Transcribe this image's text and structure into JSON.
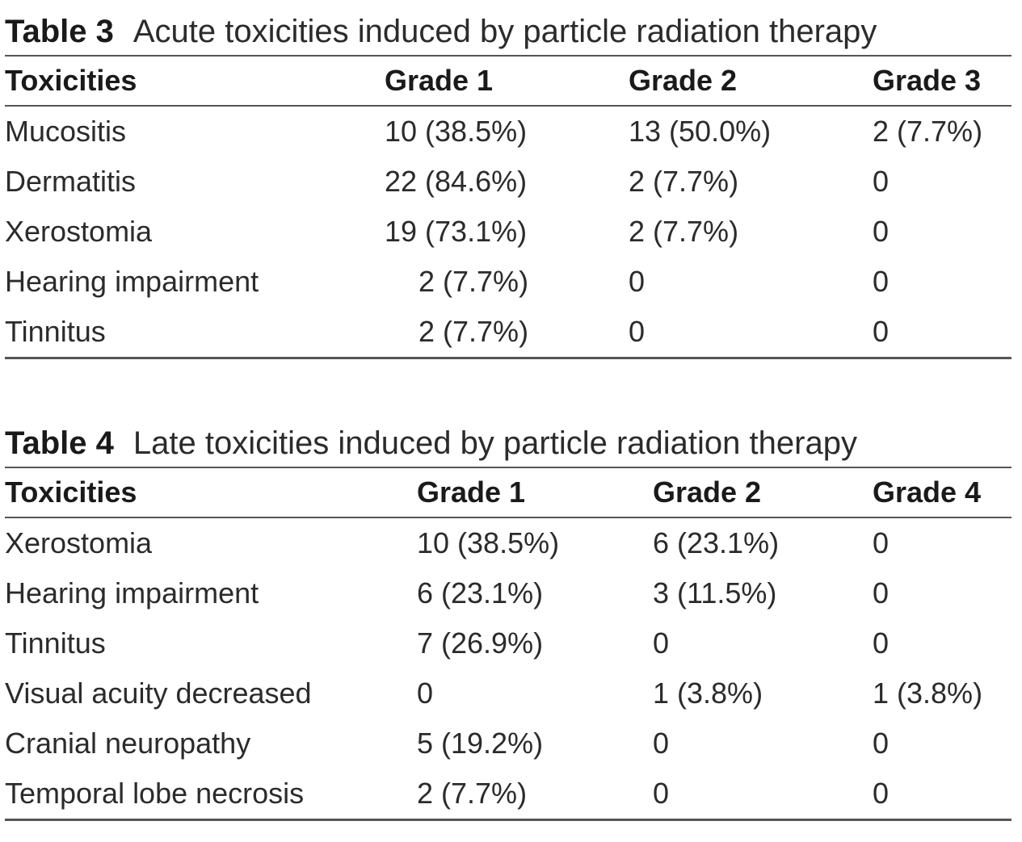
{
  "tables": [
    {
      "label": "Table 3",
      "title": "Acute toxicities induced by particle radiation therapy",
      "columns": [
        "Toxicities",
        "Grade 1",
        "Grade 2",
        "Grade 3"
      ],
      "rows": [
        [
          "Mucositis",
          "10 (38.5%)",
          "13 (50.0%)",
          "2 (7.7%)"
        ],
        [
          "Dermatitis",
          "22 (84.6%)",
          "2 (7.7%)",
          "0"
        ],
        [
          "Xerostomia",
          "19 (73.1%)",
          "2 (7.7%)",
          "0"
        ],
        [
          "Hearing impairment",
          "2 (7.7%)",
          "0",
          "0"
        ],
        [
          "Tinnitus",
          "2 (7.7%)",
          "0",
          "0"
        ]
      ]
    },
    {
      "label": "Table 4",
      "title": "Late toxicities induced by particle radiation therapy",
      "columns": [
        "Toxicities",
        "Grade 1",
        "Grade 2",
        "Grade 4"
      ],
      "rows": [
        [
          "Xerostomia",
          "10 (38.5%)",
          "6 (23.1%)",
          "0"
        ],
        [
          "Hearing impairment",
          "6 (23.1%)",
          "3 (11.5%)",
          "0"
        ],
        [
          "Tinnitus",
          "7 (26.9%)",
          "0",
          "0"
        ],
        [
          "Visual acuity decreased",
          "0",
          "1 (3.8%)",
          "1 (3.8%)"
        ],
        [
          "Cranial neuropathy",
          "5 (19.2%)",
          "0",
          "0"
        ],
        [
          "Temporal lobe necrosis",
          "2 (7.7%)",
          "0",
          "0"
        ]
      ]
    }
  ]
}
